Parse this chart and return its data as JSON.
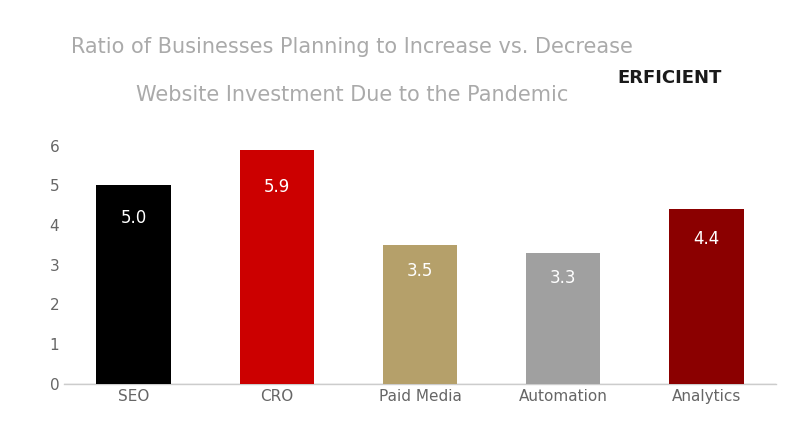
{
  "categories": [
    "SEO",
    "CRO",
    "Paid Media",
    "Automation",
    "Analytics"
  ],
  "values": [
    5.0,
    5.9,
    3.5,
    3.3,
    4.4
  ],
  "bar_colors": [
    "#000000",
    "#cc0000",
    "#b5a06a",
    "#a0a0a0",
    "#8b0000"
  ],
  "label_colors": [
    "#ffffff",
    "#ffffff",
    "#ffffff",
    "#ffffff",
    "#ffffff"
  ],
  "title_line1": "Ratio of Businesses Planning to Increase vs. Decrease",
  "title_line2": "Website Investment Due to the Pandemic",
  "title_color": "#aaaaaa",
  "title_fontsize": 15,
  "ylim": [
    0,
    6.6
  ],
  "yticks": [
    0,
    1,
    2,
    3,
    4,
    5,
    6
  ],
  "bar_label_fontsize": 12,
  "tick_label_fontsize": 11,
  "background_color": "#ffffff",
  "logo_box_color": "#aa1111",
  "logo_text_color": "#1a1a1a",
  "logo_p_color": "#ffffff"
}
